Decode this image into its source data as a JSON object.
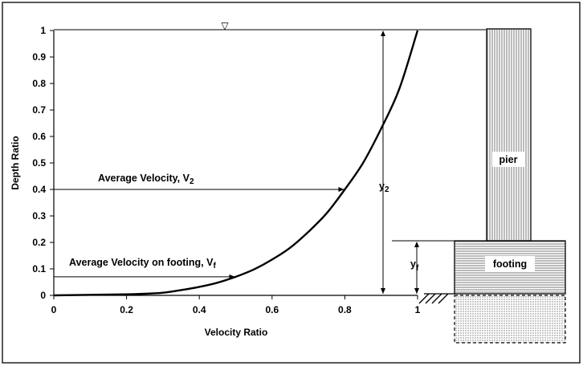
{
  "chart_data": {
    "type": "line",
    "xlabel": "Velocity Ratio",
    "ylabel": "Depth Ratio",
    "xlim": [
      0,
      1
    ],
    "ylim": [
      0,
      1
    ],
    "x_ticks": [
      "0",
      "0.2",
      "0.4",
      "0.6",
      "0.8",
      "1"
    ],
    "y_ticks": [
      "0",
      "0.1",
      "0.2",
      "0.3",
      "0.4",
      "0.5",
      "0.6",
      "0.7",
      "0.8",
      "0.9",
      "1"
    ],
    "grid": false,
    "series": [
      {
        "x": [
          0.0,
          0.1,
          0.2,
          0.25,
          0.3,
          0.35,
          0.4,
          0.45,
          0.5,
          0.55,
          0.6,
          0.65,
          0.7,
          0.75,
          0.8,
          0.85,
          0.9,
          0.95,
          1.0
        ],
        "y": [
          0.0,
          0.002,
          0.004,
          0.006,
          0.01,
          0.02,
          0.032,
          0.048,
          0.07,
          0.098,
          0.135,
          0.18,
          0.24,
          0.31,
          0.4,
          0.5,
          0.63,
          0.78,
          1.0
        ]
      }
    ],
    "annotations": {
      "v2_label": "Average Velocity, V",
      "v2_sub": "2",
      "v2_depth": 0.4,
      "v2_velocity": 0.8,
      "vf_label": "Average Velocity on footing, V",
      "vf_sub": "f",
      "vf_depth": 0.07,
      "vf_velocity": 0.5,
      "y2_label": "y",
      "y2_sub": "2",
      "yf_label": "y",
      "yf_sub": "f",
      "footing_top_depth": 0.2,
      "water_surface_symbol": "▽"
    },
    "structure": {
      "pier_label": "pier",
      "footing_label": "footing"
    }
  }
}
